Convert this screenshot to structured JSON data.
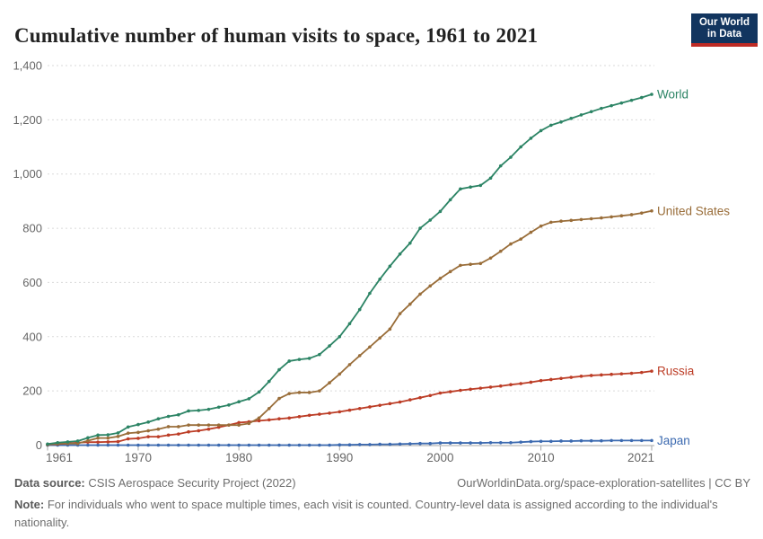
{
  "header": {
    "title": "Cumulative number of human visits to space, 1961 to 2021",
    "logo_line1": "Our World",
    "logo_line2": "in Data"
  },
  "footer": {
    "data_source_label": "Data source:",
    "data_source_value": "CSIS Aerospace Security Project (2022)",
    "attribution": "OurWorldinData.org/space-exploration-satellites | CC BY",
    "note_label": "Note:",
    "note_text": "For individuals who went to space multiple times, each visit is counted. Country-level data is assigned according to the individual's nationality."
  },
  "colors": {
    "grid": "#dadada",
    "axis": "#a5a5a5",
    "tick_text": "#666666",
    "logo_bg": "#12355f",
    "logo_stripe": "#be2b25"
  },
  "chart_data": {
    "type": "line",
    "title": "Cumulative number of human visits to space, 1961 to 2021",
    "xlabel": "",
    "ylabel": "",
    "grid": "dashed horizontal",
    "legend_position": "end-of-line labels",
    "xlim": [
      1961,
      2021
    ],
    "ylim": [
      0,
      1400
    ],
    "x_ticks": [
      1961,
      1970,
      1980,
      1990,
      2000,
      2010,
      2021
    ],
    "y_ticks": [
      0,
      200,
      400,
      600,
      800,
      1000,
      1200,
      1400
    ],
    "years": [
      1961,
      1962,
      1963,
      1964,
      1965,
      1966,
      1967,
      1968,
      1969,
      1970,
      1971,
      1972,
      1973,
      1974,
      1975,
      1976,
      1977,
      1978,
      1979,
      1980,
      1981,
      1982,
      1983,
      1984,
      1985,
      1986,
      1987,
      1988,
      1989,
      1990,
      1991,
      1992,
      1993,
      1994,
      1995,
      1996,
      1997,
      1998,
      1999,
      2000,
      2001,
      2002,
      2003,
      2004,
      2005,
      2006,
      2007,
      2008,
      2009,
      2010,
      2011,
      2012,
      2013,
      2014,
      2015,
      2016,
      2017,
      2018,
      2019,
      2020,
      2021
    ],
    "series": [
      {
        "name": "World",
        "color": "#2C8465",
        "values": [
          4,
          9,
          12,
          15,
          27,
          37,
          38,
          45,
          67,
          76,
          85,
          97,
          106,
          112,
          126,
          128,
          132,
          140,
          148,
          160,
          171,
          196,
          235,
          278,
          310,
          316,
          320,
          334,
          366,
          400,
          448,
          500,
          560,
          612,
          660,
          705,
          745,
          800,
          830,
          862,
          905,
          945,
          952,
          958,
          985,
          1030,
          1062,
          1100,
          1132,
          1160,
          1180,
          1192,
          1205,
          1218,
          1230,
          1242,
          1252,
          1262,
          1272,
          1282,
          1294
        ]
      },
      {
        "name": "United States",
        "color": "#996D39",
        "values": [
          2,
          5,
          6,
          6,
          16,
          26,
          26,
          32,
          44,
          47,
          53,
          59,
          68,
          68,
          74,
          74,
          74,
          74,
          74,
          74,
          80,
          100,
          135,
          172,
          190,
          194,
          194,
          200,
          230,
          262,
          297,
          330,
          362,
          395,
          428,
          485,
          520,
          557,
          587,
          615,
          640,
          663,
          667,
          670,
          690,
          715,
          742,
          760,
          785,
          808,
          822,
          826,
          829,
          832,
          835,
          838,
          842,
          846,
          850,
          856,
          864
        ]
      },
      {
        "name": "Russia",
        "color": "#BC3D26",
        "values": [
          2,
          4,
          6,
          9,
          11,
          11,
          12,
          13,
          23,
          25,
          31,
          31,
          37,
          41,
          49,
          53,
          59,
          66,
          74,
          83,
          86,
          90,
          93,
          97,
          100,
          105,
          110,
          114,
          118,
          123,
          129,
          135,
          141,
          147,
          153,
          159,
          167,
          175,
          183,
          192,
          197,
          202,
          206,
          210,
          214,
          218,
          223,
          227,
          232,
          238,
          242,
          246,
          250,
          254,
          257,
          259,
          261,
          263,
          265,
          268,
          273
        ]
      },
      {
        "name": "Japan",
        "color": "#3C6AB0",
        "values": [
          0,
          0,
          0,
          0,
          0,
          0,
          0,
          0,
          0,
          0,
          0,
          0,
          0,
          0,
          0,
          0,
          0,
          0,
          0,
          0,
          0,
          0,
          0,
          0,
          0,
          0,
          0,
          0,
          0,
          1,
          1,
          2,
          2,
          3,
          3,
          4,
          5,
          6,
          6,
          8,
          8,
          8,
          8,
          8,
          9,
          9,
          9,
          11,
          13,
          14,
          14,
          15,
          15,
          16,
          16,
          16,
          17,
          17,
          17,
          17,
          17
        ]
      }
    ]
  }
}
